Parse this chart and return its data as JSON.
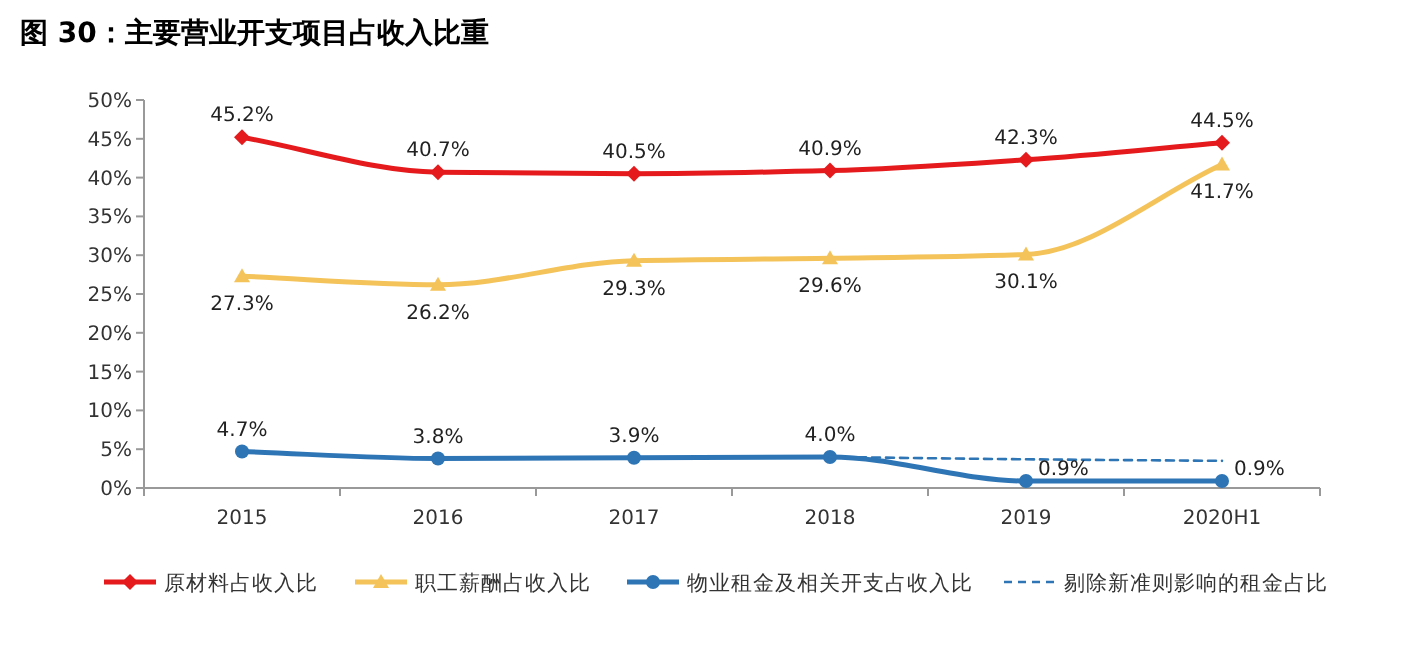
{
  "chart_data": {
    "type": "line",
    "title": "图 30：主要营业开支项目占收入比重",
    "categories": [
      "2015",
      "2016",
      "2017",
      "2018",
      "2019",
      "2020H1"
    ],
    "ylim": [
      0,
      50
    ],
    "yticks": [
      {
        "value": 0,
        "label": "0%"
      },
      {
        "value": 5,
        "label": "5%"
      },
      {
        "value": 10,
        "label": "10%"
      },
      {
        "value": 15,
        "label": "15%"
      },
      {
        "value": 20,
        "label": "20%"
      },
      {
        "value": 25,
        "label": "25%"
      },
      {
        "value": 30,
        "label": "30%"
      },
      {
        "value": 35,
        "label": "35%"
      },
      {
        "value": 40,
        "label": "40%"
      },
      {
        "value": 45,
        "label": "45%"
      },
      {
        "value": 50,
        "label": "50%"
      }
    ],
    "series": [
      {
        "name": "原材料占收入比",
        "color": "#e41a1c",
        "marker": "diamond",
        "values": [
          45.2,
          40.7,
          40.5,
          40.9,
          42.3,
          44.5
        ],
        "value_labels": [
          "45.2%",
          "40.7%",
          "40.5%",
          "40.9%",
          "42.3%",
          "44.5%"
        ]
      },
      {
        "name": "职工薪酬占收入比",
        "color": "#f4c35a",
        "marker": "triangle",
        "values": [
          27.3,
          26.2,
          29.3,
          29.6,
          30.1,
          41.7
        ],
        "value_labels": [
          "27.3%",
          "26.2%",
          "29.3%",
          "29.6%",
          "30.1%",
          "41.7%"
        ]
      },
      {
        "name": "物业租金及相关开支占收入比",
        "color": "#2e75b6",
        "marker": "circle",
        "values": [
          4.7,
          3.8,
          3.9,
          4.0,
          0.9,
          0.9
        ],
        "value_labels": [
          "4.7%",
          "3.8%",
          "3.9%",
          "4.0%",
          "0.9%",
          "0.9%"
        ]
      },
      {
        "name": "剔除新准则影响的租金占比",
        "color": "#2e75b6",
        "marker": "none",
        "line_style": "dashed",
        "values": [
          null,
          null,
          null,
          4.0,
          3.7,
          3.5
        ]
      }
    ],
    "grid": false,
    "legend": "bottom"
  }
}
